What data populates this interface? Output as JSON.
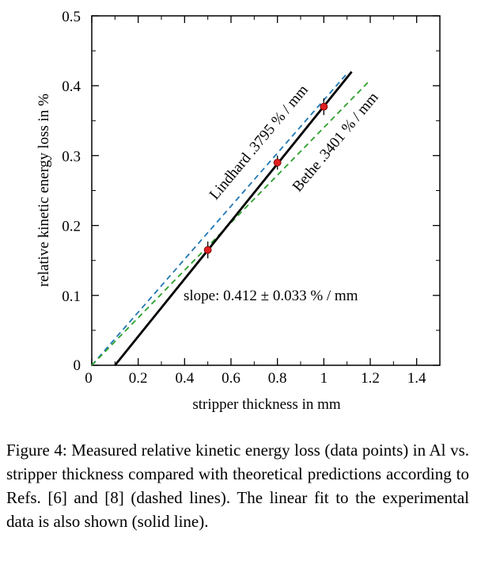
{
  "chart_data": {
    "type": "line",
    "xlabel": "stripper thickness in mm",
    "ylabel": "relative kinetic energy loss in %",
    "xlim": [
      0,
      1.5
    ],
    "ylim": [
      0,
      0.5
    ],
    "x_ticks": [
      0,
      0.2,
      0.4,
      0.6,
      0.8,
      1.0,
      1.2,
      1.4
    ],
    "x_tick_labels": [
      "0",
      "0.2",
      "0.4",
      "0.6",
      "0.8",
      "1",
      "1.2",
      "1.4"
    ],
    "y_ticks": [
      0,
      0.1,
      0.2,
      0.3,
      0.4,
      0.5
    ],
    "y_tick_labels": [
      "0",
      "0.1",
      "0.2",
      "0.3",
      "0.4",
      "0.5"
    ],
    "grid": false,
    "series": [
      {
        "name": "Lindhard .3795 % / mm",
        "style": "dashed",
        "color": "#1f77b4",
        "x": [
          0,
          1.1
        ],
        "y": [
          0,
          0.4175
        ]
      },
      {
        "name": "Bethe .3401 % / mm",
        "style": "dashed",
        "color": "#2ca02c",
        "x": [
          0,
          1.2
        ],
        "y": [
          0,
          0.4081
        ]
      },
      {
        "name": "linear fit",
        "style": "solid",
        "color": "#000000",
        "x": [
          0.1,
          1.12
        ],
        "y": [
          0.0,
          0.42
        ]
      },
      {
        "name": "data points",
        "style": "markers",
        "color": "#e02020",
        "x": [
          0.5,
          0.8,
          1.0
        ],
        "y": [
          0.165,
          0.29,
          0.37
        ],
        "yerr": [
          0.012,
          0.01,
          0.012
        ]
      }
    ],
    "annotations": {
      "lindhard": "Lindhard .3795 % / mm",
      "bethe": "Bethe .3401 % / mm",
      "slope": "slope: 0.412 ± 0.033 % / mm"
    }
  },
  "caption": "Figure 4: Measured relative kinetic energy loss (data points) in Al vs. stripper thickness compared with theoretical predictions according to Refs. [6] and [8] (dashed lines). The linear fit to the experimental data is also shown (solid line)."
}
